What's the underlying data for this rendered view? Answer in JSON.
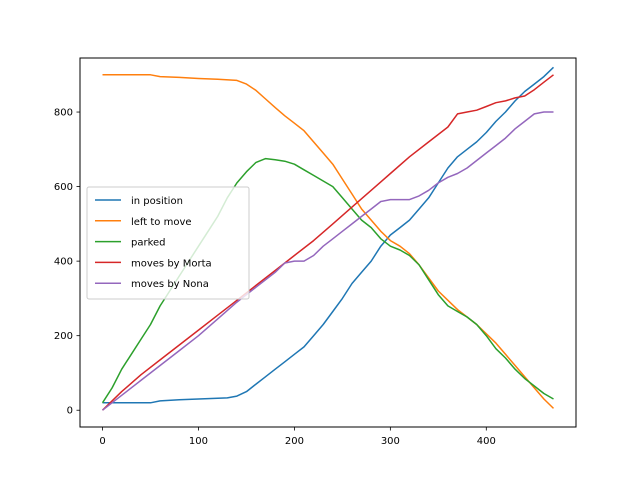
{
  "chart_data": {
    "type": "line",
    "title": "",
    "xlabel": "",
    "ylabel": "",
    "xlim": [
      -23.5,
      493.5
    ],
    "ylim": [
      -45,
      945
    ],
    "xticks": [
      0,
      100,
      200,
      300,
      400
    ],
    "yticks": [
      0,
      200,
      400,
      600,
      800
    ],
    "grid": false,
    "legend": "center-left",
    "series": [
      {
        "name": "in position",
        "color": "#1f77b4",
        "x": [
          0,
          20,
          40,
          50,
          60,
          80,
          100,
          120,
          130,
          140,
          150,
          160,
          170,
          180,
          190,
          200,
          210,
          220,
          230,
          240,
          250,
          260,
          270,
          280,
          290,
          300,
          310,
          320,
          330,
          340,
          350,
          360,
          370,
          380,
          390,
          400,
          410,
          420,
          430,
          440,
          450,
          460,
          470
        ],
        "y": [
          20,
          20,
          20,
          20,
          25,
          28,
          30,
          32,
          33,
          38,
          50,
          70,
          90,
          110,
          130,
          150,
          170,
          200,
          230,
          265,
          300,
          340,
          370,
          400,
          440,
          470,
          490,
          510,
          540,
          570,
          610,
          650,
          680,
          700,
          720,
          745,
          775,
          800,
          830,
          855,
          875,
          895,
          920
        ]
      },
      {
        "name": "left to move",
        "color": "#ff7f0e",
        "x": [
          0,
          20,
          40,
          50,
          60,
          80,
          100,
          120,
          140,
          150,
          160,
          170,
          180,
          190,
          200,
          210,
          220,
          230,
          240,
          250,
          260,
          270,
          280,
          290,
          300,
          310,
          320,
          330,
          340,
          350,
          360,
          370,
          380,
          390,
          400,
          410,
          420,
          430,
          440,
          450,
          460,
          470
        ],
        "y": [
          900,
          900,
          900,
          900,
          895,
          893,
          890,
          888,
          885,
          875,
          858,
          835,
          812,
          790,
          770,
          750,
          720,
          690,
          660,
          620,
          580,
          540,
          510,
          480,
          455,
          440,
          420,
          390,
          355,
          320,
          295,
          270,
          250,
          230,
          205,
          180,
          150,
          120,
          90,
          60,
          30,
          5
        ]
      },
      {
        "name": "parked",
        "color": "#2ca02c",
        "x": [
          0,
          10,
          20,
          30,
          40,
          50,
          60,
          70,
          80,
          90,
          100,
          110,
          120,
          130,
          140,
          150,
          160,
          170,
          180,
          190,
          200,
          210,
          220,
          230,
          240,
          250,
          260,
          270,
          280,
          290,
          300,
          310,
          320,
          330,
          340,
          350,
          360,
          370,
          380,
          390,
          400,
          410,
          420,
          430,
          440,
          450,
          460,
          470
        ],
        "y": [
          20,
          60,
          110,
          150,
          190,
          230,
          280,
          320,
          360,
          400,
          440,
          480,
          520,
          570,
          610,
          640,
          665,
          675,
          672,
          668,
          660,
          645,
          630,
          615,
          600,
          570,
          540,
          510,
          490,
          460,
          440,
          430,
          415,
          390,
          350,
          310,
          280,
          265,
          250,
          230,
          200,
          165,
          140,
          110,
          85,
          65,
          45,
          30
        ]
      },
      {
        "name": "moves by Morta",
        "color": "#d62728",
        "x": [
          0,
          20,
          40,
          60,
          80,
          100,
          120,
          140,
          160,
          180,
          200,
          220,
          240,
          260,
          280,
          300,
          320,
          340,
          360,
          370,
          380,
          390,
          400,
          410,
          420,
          430,
          440,
          450,
          460,
          470
        ],
        "y": [
          0,
          50,
          95,
          135,
          175,
          215,
          255,
          295,
          335,
          375,
          415,
          455,
          500,
          545,
          590,
          635,
          680,
          720,
          760,
          795,
          800,
          805,
          815,
          825,
          830,
          838,
          843,
          860,
          880,
          900
        ]
      },
      {
        "name": "moves by Nona",
        "color": "#9467bd",
        "x": [
          0,
          20,
          40,
          60,
          80,
          100,
          120,
          140,
          160,
          180,
          190,
          200,
          210,
          220,
          230,
          240,
          250,
          260,
          270,
          280,
          290,
          300,
          310,
          320,
          330,
          340,
          350,
          360,
          370,
          380,
          390,
          400,
          410,
          420,
          430,
          440,
          450,
          460,
          470
        ],
        "y": [
          0,
          40,
          80,
          120,
          160,
          200,
          245,
          290,
          330,
          370,
          395,
          400,
          400,
          415,
          440,
          460,
          480,
          500,
          520,
          540,
          560,
          565,
          565,
          565,
          575,
          590,
          610,
          625,
          635,
          650,
          670,
          690,
          710,
          730,
          755,
          775,
          795,
          800,
          800
        ]
      }
    ]
  }
}
